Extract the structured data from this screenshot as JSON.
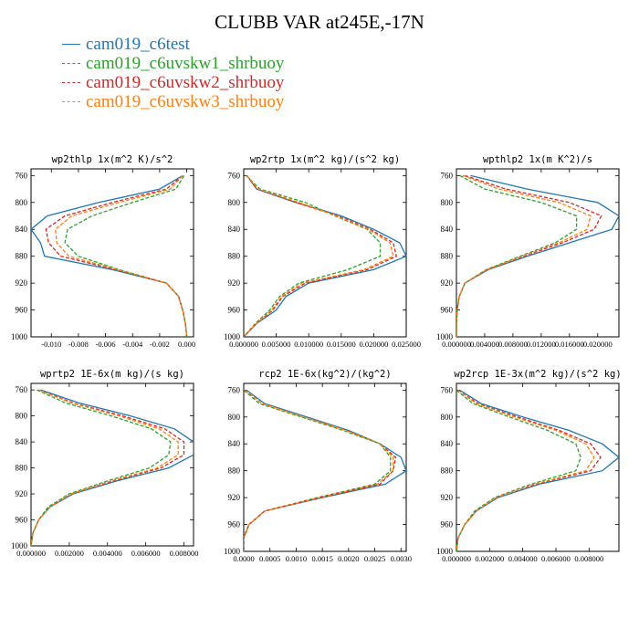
{
  "title": "CLUBB VAR at245E,-17N",
  "legend": [
    {
      "name": "cam019_c6test",
      "color": "#1f77b4",
      "dash": false
    },
    {
      "name": "cam019_c6uvskw1_shrbuoy",
      "color": "#2ca02c",
      "dash": true
    },
    {
      "name": "cam019_c6uvskw2_shrbuoy",
      "color": "#d62728",
      "dash": true
    },
    {
      "name": "cam019_c6uvskw3_shrbuoy",
      "color": "#ff7f0e",
      "dash": true
    }
  ],
  "chart_data": [
    {
      "type": "line",
      "title": "wp2thlp  1x(m^2 K)/s^2",
      "y": [
        760,
        780,
        800,
        820,
        840,
        860,
        880,
        900,
        920,
        940,
        960,
        980,
        1000
      ],
      "ylim": [
        1000,
        750
      ],
      "yticks": [
        1000,
        960,
        920,
        880,
        840,
        800,
        760
      ],
      "xlim": [
        -0.0115,
        0.0005
      ],
      "xticks": [
        -0.01,
        -0.008,
        -0.006,
        -0.004,
        -0.002,
        0.0
      ],
      "xtick_labels": [
        "-0.010",
        "-0.008",
        "-0.006",
        "-0.004",
        "-0.002",
        "0.000"
      ],
      "series": [
        {
          "name": "cam019_c6test",
          "values": [
            -0.0003,
            -0.002,
            -0.0065,
            -0.0103,
            -0.0115,
            -0.0108,
            -0.0105,
            -0.0055,
            -0.0015,
            -0.0006,
            -0.0003,
            -0.0001,
            0.0
          ]
        },
        {
          "name": "cam019_c6uvskw1_shrbuoy",
          "values": [
            -0.0002,
            -0.0008,
            -0.004,
            -0.007,
            -0.0088,
            -0.009,
            -0.008,
            -0.005,
            -0.0015,
            -0.0006,
            -0.0003,
            -0.0001,
            0.0
          ]
        },
        {
          "name": "cam019_c6uvskw2_shrbuoy",
          "values": [
            -0.0003,
            -0.0015,
            -0.0055,
            -0.009,
            -0.0104,
            -0.0102,
            -0.0093,
            -0.0052,
            -0.0015,
            -0.0006,
            -0.0003,
            -0.0001,
            0.0
          ]
        },
        {
          "name": "cam019_c6uvskw3_shrbuoy",
          "values": [
            -0.0003,
            -0.0012,
            -0.005,
            -0.0085,
            -0.0097,
            -0.0096,
            -0.0087,
            -0.0051,
            -0.0015,
            -0.0006,
            -0.0003,
            -0.0001,
            0.0
          ]
        }
      ]
    },
    {
      "type": "line",
      "title": "wp2rtp  1x(m^2 kg)/(s^2 kg)",
      "y": [
        760,
        780,
        800,
        820,
        840,
        860,
        880,
        900,
        920,
        940,
        960,
        980,
        1000
      ],
      "ylim": [
        1000,
        750
      ],
      "yticks": [
        1000,
        960,
        920,
        880,
        840,
        800,
        760
      ],
      "xlim": [
        0.0,
        0.025
      ],
      "xticks": [
        0.0,
        0.005,
        0.01,
        0.015,
        0.02,
        0.025
      ],
      "xtick_labels": [
        "0.000000",
        "0.005000",
        "0.010000",
        "0.015000",
        "0.020000",
        "0.025000"
      ],
      "series": [
        {
          "name": "cam019_c6test",
          "values": [
            0.0005,
            0.002,
            0.008,
            0.015,
            0.02,
            0.024,
            0.025,
            0.02,
            0.01,
            0.0065,
            0.005,
            0.002,
            0.0
          ]
        },
        {
          "name": "cam019_c6uvskw1_shrbuoy",
          "values": [
            0.0004,
            0.0025,
            0.0095,
            0.014,
            0.019,
            0.021,
            0.021,
            0.016,
            0.0085,
            0.0055,
            0.004,
            0.0018,
            0.0
          ]
        },
        {
          "name": "cam019_c6uvskw2_shrbuoy",
          "values": [
            0.0005,
            0.002,
            0.008,
            0.0145,
            0.0195,
            0.023,
            0.0235,
            0.019,
            0.0095,
            0.006,
            0.0045,
            0.002,
            0.0
          ]
        },
        {
          "name": "cam019_c6uvskw3_shrbuoy",
          "values": [
            0.0005,
            0.0022,
            0.0085,
            0.0142,
            0.0192,
            0.0225,
            0.023,
            0.0185,
            0.009,
            0.0058,
            0.0043,
            0.002,
            0.0
          ]
        }
      ]
    },
    {
      "type": "line",
      "title": "wpthlp2  1x(m K^2)/s",
      "y": [
        760,
        780,
        800,
        820,
        840,
        860,
        880,
        900,
        920,
        940,
        960,
        980,
        1000
      ],
      "ylim": [
        1000,
        750
      ],
      "yticks": [
        1000,
        960,
        920,
        880,
        840,
        800,
        760
      ],
      "xlim": [
        0.0,
        0.023
      ],
      "xticks": [
        0.0,
        0.004,
        0.008,
        0.012,
        0.016,
        0.02
      ],
      "xtick_labels": [
        "0.000000",
        "0.004000",
        "0.008000",
        "0.012000",
        "0.016000",
        "0.020000"
      ],
      "series": [
        {
          "name": "cam019_c6test",
          "values": [
            0.002,
            0.01,
            0.02,
            0.023,
            0.022,
            0.016,
            0.01,
            0.0045,
            0.0012,
            0.0004,
            0.0001,
            0.0,
            0.0
          ]
        },
        {
          "name": "cam019_c6uvskw1_shrbuoy",
          "values": [
            0.0005,
            0.004,
            0.012,
            0.017,
            0.017,
            0.014,
            0.009,
            0.0042,
            0.0012,
            0.0004,
            0.0001,
            0.0,
            0.0
          ]
        },
        {
          "name": "cam019_c6uvskw2_shrbuoy",
          "values": [
            0.0012,
            0.007,
            0.016,
            0.0205,
            0.0195,
            0.015,
            0.0095,
            0.0044,
            0.0012,
            0.0004,
            0.0001,
            0.0,
            0.0
          ]
        },
        {
          "name": "cam019_c6uvskw3_shrbuoy",
          "values": [
            0.0009,
            0.006,
            0.0145,
            0.019,
            0.0185,
            0.0145,
            0.0093,
            0.0043,
            0.0012,
            0.0004,
            0.0001,
            0.0,
            0.0
          ]
        }
      ]
    },
    {
      "type": "line",
      "title": "wprtp2  1E-6x(m kg)/(s kg)",
      "y": [
        760,
        780,
        800,
        820,
        840,
        860,
        880,
        900,
        920,
        940,
        960,
        980,
        1000
      ],
      "ylim": [
        1000,
        750
      ],
      "yticks": [
        1000,
        960,
        920,
        880,
        840,
        800,
        760
      ],
      "xlim": [
        0.0,
        0.0085
      ],
      "xticks": [
        0.0,
        0.002,
        0.004,
        0.006,
        0.008
      ],
      "xtick_labels": [
        "0.000000",
        "0.002000",
        "0.004000",
        "0.006000",
        "0.008000"
      ],
      "series": [
        {
          "name": "cam019_c6test",
          "values": [
            0.0005,
            0.0025,
            0.0052,
            0.0075,
            0.0085,
            0.0085,
            0.0072,
            0.0045,
            0.0022,
            0.001,
            0.0004,
            0.0001,
            0.0
          ]
        },
        {
          "name": "cam019_c6uvskw1_shrbuoy",
          "values": [
            0.0003,
            0.0018,
            0.0042,
            0.0063,
            0.0073,
            0.0072,
            0.0062,
            0.004,
            0.002,
            0.0009,
            0.0004,
            0.0001,
            0.0
          ]
        },
        {
          "name": "cam019_c6uvskw2_shrbuoy",
          "values": [
            0.0004,
            0.0022,
            0.0048,
            0.007,
            0.008,
            0.008,
            0.0068,
            0.0043,
            0.0021,
            0.001,
            0.0004,
            0.0001,
            0.0
          ]
        },
        {
          "name": "cam019_c6uvskw3_shrbuoy",
          "values": [
            0.0004,
            0.0021,
            0.0046,
            0.0067,
            0.0077,
            0.0077,
            0.0066,
            0.0042,
            0.0021,
            0.001,
            0.0004,
            0.0001,
            0.0
          ]
        }
      ]
    },
    {
      "type": "line",
      "title": "rcp2  1E-6x(kg^2)/(kg^2)",
      "y": [
        760,
        780,
        800,
        820,
        840,
        860,
        880,
        900,
        920,
        940,
        960,
        980,
        1000
      ],
      "ylim": [
        1000,
        750
      ],
      "yticks": [
        1000,
        960,
        920,
        880,
        840,
        800,
        760
      ],
      "xlim": [
        0.0,
        0.0031
      ],
      "xticks": [
        0.0,
        0.0005,
        0.001,
        0.0015,
        0.002,
        0.0025,
        0.003
      ],
      "xtick_labels": [
        "0.0000",
        "0.0005",
        "0.0010",
        "0.0015",
        "0.0020",
        "0.0025",
        "0.0030"
      ],
      "series": [
        {
          "name": "cam019_c6test",
          "values": [
            5e-05,
            0.0004,
            0.0012,
            0.002,
            0.0026,
            0.003,
            0.0031,
            0.0027,
            0.0015,
            0.0004,
            0.0001,
            0.0,
            0.0
          ]
        },
        {
          "name": "cam019_c6uvskw1_shrbuoy",
          "values": [
            0.0,
            0.0003,
            0.0011,
            0.0019,
            0.0026,
            0.0028,
            0.0028,
            0.0025,
            0.0014,
            0.0004,
            0.0001,
            0.0,
            0.0
          ]
        },
        {
          "name": "cam019_c6uvskw2_shrbuoy",
          "values": [
            3e-05,
            0.00035,
            0.00115,
            0.00195,
            0.0026,
            0.0029,
            0.00285,
            0.0026,
            0.00145,
            0.0004,
            0.0001,
            0.0,
            0.0
          ]
        },
        {
          "name": "cam019_c6uvskw3_shrbuoy",
          "values": [
            3e-05,
            0.00035,
            0.00115,
            0.00195,
            0.0026,
            0.00285,
            0.00285,
            0.00255,
            0.00145,
            0.0004,
            0.0001,
            0.0,
            0.0
          ]
        }
      ]
    },
    {
      "type": "line",
      "title": "wp2rcp  1E-3x(m^2 kg)/(s^2 kg)",
      "y": [
        760,
        780,
        800,
        820,
        840,
        860,
        880,
        900,
        920,
        940,
        960,
        980,
        1000
      ],
      "ylim": [
        1000,
        750
      ],
      "yticks": [
        1000,
        960,
        920,
        880,
        840,
        800,
        760
      ],
      "xlim": [
        0.0,
        0.0098
      ],
      "xticks": [
        0.0,
        0.002,
        0.004,
        0.006,
        0.008
      ],
      "xtick_labels": [
        "0.000000",
        "0.002000",
        "0.004000",
        "0.006000",
        "0.008000"
      ],
      "series": [
        {
          "name": "cam019_c6test",
          "values": [
            0.0002,
            0.0015,
            0.004,
            0.0068,
            0.0088,
            0.0098,
            0.0088,
            0.005,
            0.0025,
            0.0012,
            0.0005,
            0.0001,
            0.0
          ]
        },
        {
          "name": "cam019_c6uvskw1_shrbuoy",
          "values": [
            0.0,
            0.001,
            0.0032,
            0.0055,
            0.0072,
            0.0075,
            0.0072,
            0.0045,
            0.0023,
            0.0011,
            0.0005,
            0.0001,
            0.0
          ]
        },
        {
          "name": "cam019_c6uvskw2_shrbuoy",
          "values": [
            0.0001,
            0.0013,
            0.0037,
            0.0062,
            0.0081,
            0.0087,
            0.0081,
            0.0048,
            0.0024,
            0.0012,
            0.0005,
            0.0001,
            0.0
          ]
        },
        {
          "name": "cam019_c6uvskw3_shrbuoy",
          "values": [
            0.0001,
            0.0012,
            0.0035,
            0.006,
            0.0078,
            0.0083,
            0.0078,
            0.0047,
            0.0024,
            0.0012,
            0.0005,
            0.0001,
            0.0
          ]
        }
      ]
    }
  ]
}
